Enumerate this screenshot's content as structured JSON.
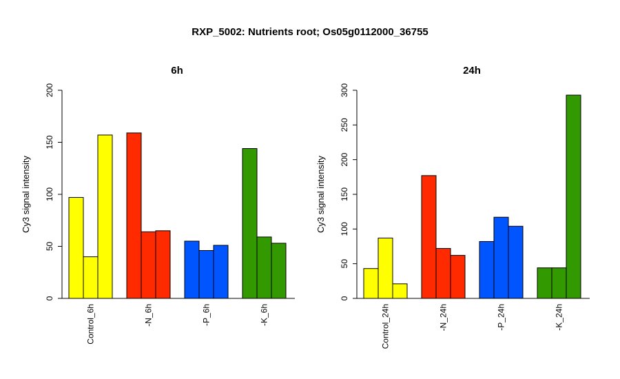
{
  "figure": {
    "title": "RXP_5002: Nutrients root; Os05g0112000_36755"
  },
  "chart_data": [
    {
      "type": "bar",
      "title": "6h",
      "ylabel": "Cy3 signal intensity",
      "ylim": [
        0,
        200
      ],
      "yticks": [
        0,
        50,
        100,
        150,
        200
      ],
      "groups": [
        {
          "label": "Control_6h",
          "color": "#FFFF00",
          "values": [
            97,
            40,
            157
          ]
        },
        {
          "label": "-N_6h",
          "color": "#FF2A00",
          "values": [
            159,
            64,
            65
          ]
        },
        {
          "label": "-P_6h",
          "color": "#0055FF",
          "values": [
            55,
            46,
            51
          ]
        },
        {
          "label": "-K_6h",
          "color": "#339900",
          "values": [
            144,
            59,
            53
          ]
        }
      ]
    },
    {
      "type": "bar",
      "title": "24h",
      "ylabel": "Cy3 signal intensity",
      "ylim": [
        0,
        300
      ],
      "yticks": [
        0,
        50,
        100,
        150,
        200,
        250,
        300
      ],
      "groups": [
        {
          "label": "Control_24h",
          "color": "#FFFF00",
          "values": [
            43,
            87,
            21
          ]
        },
        {
          "label": "-N_24h",
          "color": "#FF2A00",
          "values": [
            177,
            72,
            62
          ]
        },
        {
          "label": "-P_24h",
          "color": "#0055FF",
          "values": [
            82,
            117,
            104
          ]
        },
        {
          "label": "-K_24h",
          "color": "#339900",
          "values": [
            44,
            44,
            293
          ]
        }
      ]
    }
  ]
}
